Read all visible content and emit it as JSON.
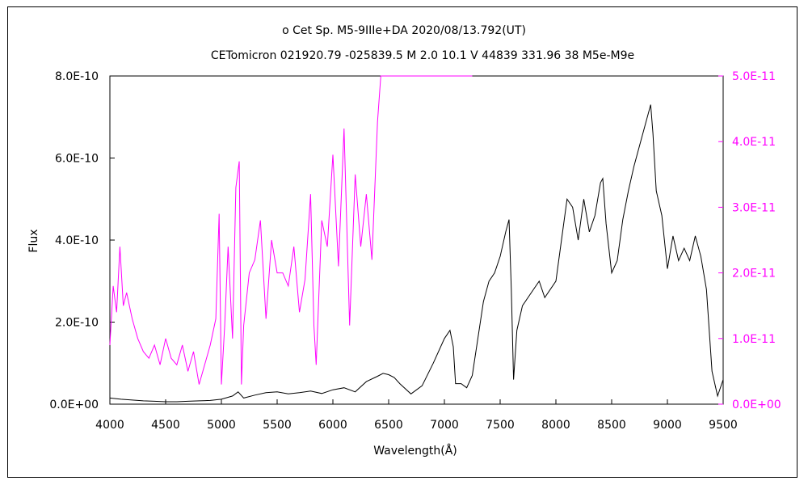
{
  "chart_data": {
    "type": "line",
    "title_line1": "ο  Cet    Sp. M5-9IIIe+DA    2020/08/13.792(UT)",
    "title_line2": "CETomicron 021920.79 -025839.5 M 2.0 10.1  V 44839 331.96 38 M5e-M9e",
    "xlabel": "Wavelength(Å)",
    "ylabel": "Flux",
    "xlim": [
      4000,
      9500
    ],
    "ylim_left": [
      0,
      8e-10
    ],
    "ylim_right": [
      0,
      5e-11
    ],
    "x_tick_labels": [
      "4000",
      "4500",
      "5000",
      "5500",
      "6000",
      "6500",
      "7000",
      "7500",
      "8000",
      "8500",
      "9000",
      "9500"
    ],
    "y_left_tick_labels": [
      "0.0E+00",
      "2.0E-10",
      "4.0E-10",
      "6.0E-10",
      "8.0E-10"
    ],
    "y_right_tick_labels": [
      "0.0E+00",
      "1.0E-11",
      "2.0E-11",
      "3.0E-11",
      "4.0E-11",
      "5.0E-11"
    ],
    "colors": {
      "primary": "#000000",
      "secondary": "#ff00ff"
    },
    "series": [
      {
        "axis": "left",
        "x": [
          4000,
          4100,
          4200,
          4300,
          4400,
          4500,
          4600,
          4700,
          4800,
          4900,
          5000,
          5100,
          5150,
          5200,
          5300,
          5400,
          5500,
          5600,
          5700,
          5800,
          5900,
          6000,
          6100,
          6200,
          6300,
          6400,
          6450,
          6500,
          6550,
          6600,
          6700,
          6800,
          6900,
          7000,
          7050,
          7080,
          7100,
          7150,
          7200,
          7250,
          7300,
          7350,
          7400,
          7450,
          7500,
          7550,
          7580,
          7600,
          7620,
          7650,
          7700,
          7800,
          7850,
          7900,
          8000,
          8050,
          8100,
          8150,
          8200,
          8250,
          8300,
          8350,
          8400,
          8420,
          8450,
          8500,
          8550,
          8600,
          8650,
          8700,
          8750,
          8800,
          8850,
          8870,
          8900,
          8950,
          9000,
          9050,
          9100,
          9150,
          9200,
          9250,
          9300,
          9350,
          9400,
          9450,
          9500
        ],
        "y": [
          1.5e-11,
          1.2e-11,
          1e-11,
          8e-12,
          7e-12,
          6e-12,
          6e-12,
          7e-12,
          8e-12,
          9e-12,
          1.2e-11,
          2e-11,
          3e-11,
          1.5e-11,
          2.2e-11,
          2.8e-11,
          3e-11,
          2.5e-11,
          2.8e-11,
          3.2e-11,
          2.6e-11,
          3.5e-11,
          4e-11,
          3e-11,
          5.5e-11,
          6.8e-11,
          7.5e-11,
          7.2e-11,
          6.5e-11,
          5e-11,
          2.5e-11,
          4.5e-11,
          1e-10,
          1.6e-10,
          1.8e-10,
          1.4e-10,
          5e-11,
          5e-11,
          4e-11,
          7e-11,
          1.6e-10,
          2.5e-10,
          3e-10,
          3.2e-10,
          3.6e-10,
          4.2e-10,
          4.5e-10,
          2.8e-10,
          6e-11,
          1.8e-10,
          2.4e-10,
          2.8e-10,
          3e-10,
          2.6e-10,
          3e-10,
          4e-10,
          5e-10,
          4.8e-10,
          4e-10,
          5e-10,
          4.2e-10,
          4.6e-10,
          5.4e-10,
          5.5e-10,
          4.4e-10,
          3.2e-10,
          3.5e-10,
          4.5e-10,
          5.2e-10,
          5.8e-10,
          6.3e-10,
          6.8e-10,
          7.3e-10,
          6.6e-10,
          5.2e-10,
          4.6e-10,
          3.3e-10,
          4.1e-10,
          3.5e-10,
          3.8e-10,
          3.5e-10,
          4.1e-10,
          3.6e-10,
          2.8e-10,
          8e-11,
          2e-11,
          6e-11
        ]
      },
      {
        "axis": "right",
        "x": [
          4000,
          4030,
          4060,
          4090,
          4120,
          4150,
          4200,
          4250,
          4300,
          4350,
          4400,
          4450,
          4500,
          4550,
          4600,
          4650,
          4700,
          4750,
          4800,
          4850,
          4900,
          4950,
          4980,
          5000,
          5030,
          5060,
          5100,
          5130,
          5160,
          5180,
          5200,
          5250,
          5300,
          5350,
          5400,
          5450,
          5500,
          5550,
          5600,
          5650,
          5700,
          5750,
          5800,
          5830,
          5850,
          5900,
          5950,
          6000,
          6050,
          6100,
          6150,
          6200,
          6250,
          6300,
          6350,
          6400,
          6430,
          6450,
          6500,
          6550,
          6600,
          6650,
          6680,
          6700,
          6750,
          6780,
          6800,
          6850,
          6900,
          6950,
          7000,
          7050,
          7080,
          7100,
          7130,
          7150,
          7200,
          7250
        ],
        "y": [
          9e-12,
          1.8e-11,
          1.4e-11,
          2.4e-11,
          1.5e-11,
          1.7e-11,
          1.3e-11,
          1e-11,
          8e-12,
          7e-12,
          9e-12,
          6e-12,
          1e-11,
          7e-12,
          6e-12,
          9e-12,
          5e-12,
          8e-12,
          3e-12,
          6e-12,
          9e-12,
          1.3e-11,
          2.9e-11,
          3e-12,
          1.2e-11,
          2.4e-11,
          1e-11,
          3.3e-11,
          3.7e-11,
          3e-12,
          1.2e-11,
          2e-11,
          2.2e-11,
          2.8e-11,
          1.3e-11,
          2.5e-11,
          2e-11,
          2e-11,
          1.8e-11,
          2.4e-11,
          1.4e-11,
          1.9e-11,
          3.2e-11,
          1.2e-11,
          6e-12,
          2.8e-11,
          2.4e-11,
          3.8e-11,
          2.1e-11,
          4.2e-11,
          1.2e-11,
          3.5e-11,
          2.4e-11,
          3.2e-11,
          2.2e-11,
          4.3e-11,
          5e-11,
          5e-11,
          5e-11,
          5e-11,
          5e-11,
          5e-11,
          5e-11,
          5e-11,
          5e-11,
          5e-11,
          5e-11,
          5e-11,
          5e-11,
          5e-11,
          5e-11,
          5e-11,
          5e-11,
          5e-11,
          5e-11,
          5e-11,
          5e-11,
          5e-11
        ]
      }
    ]
  }
}
